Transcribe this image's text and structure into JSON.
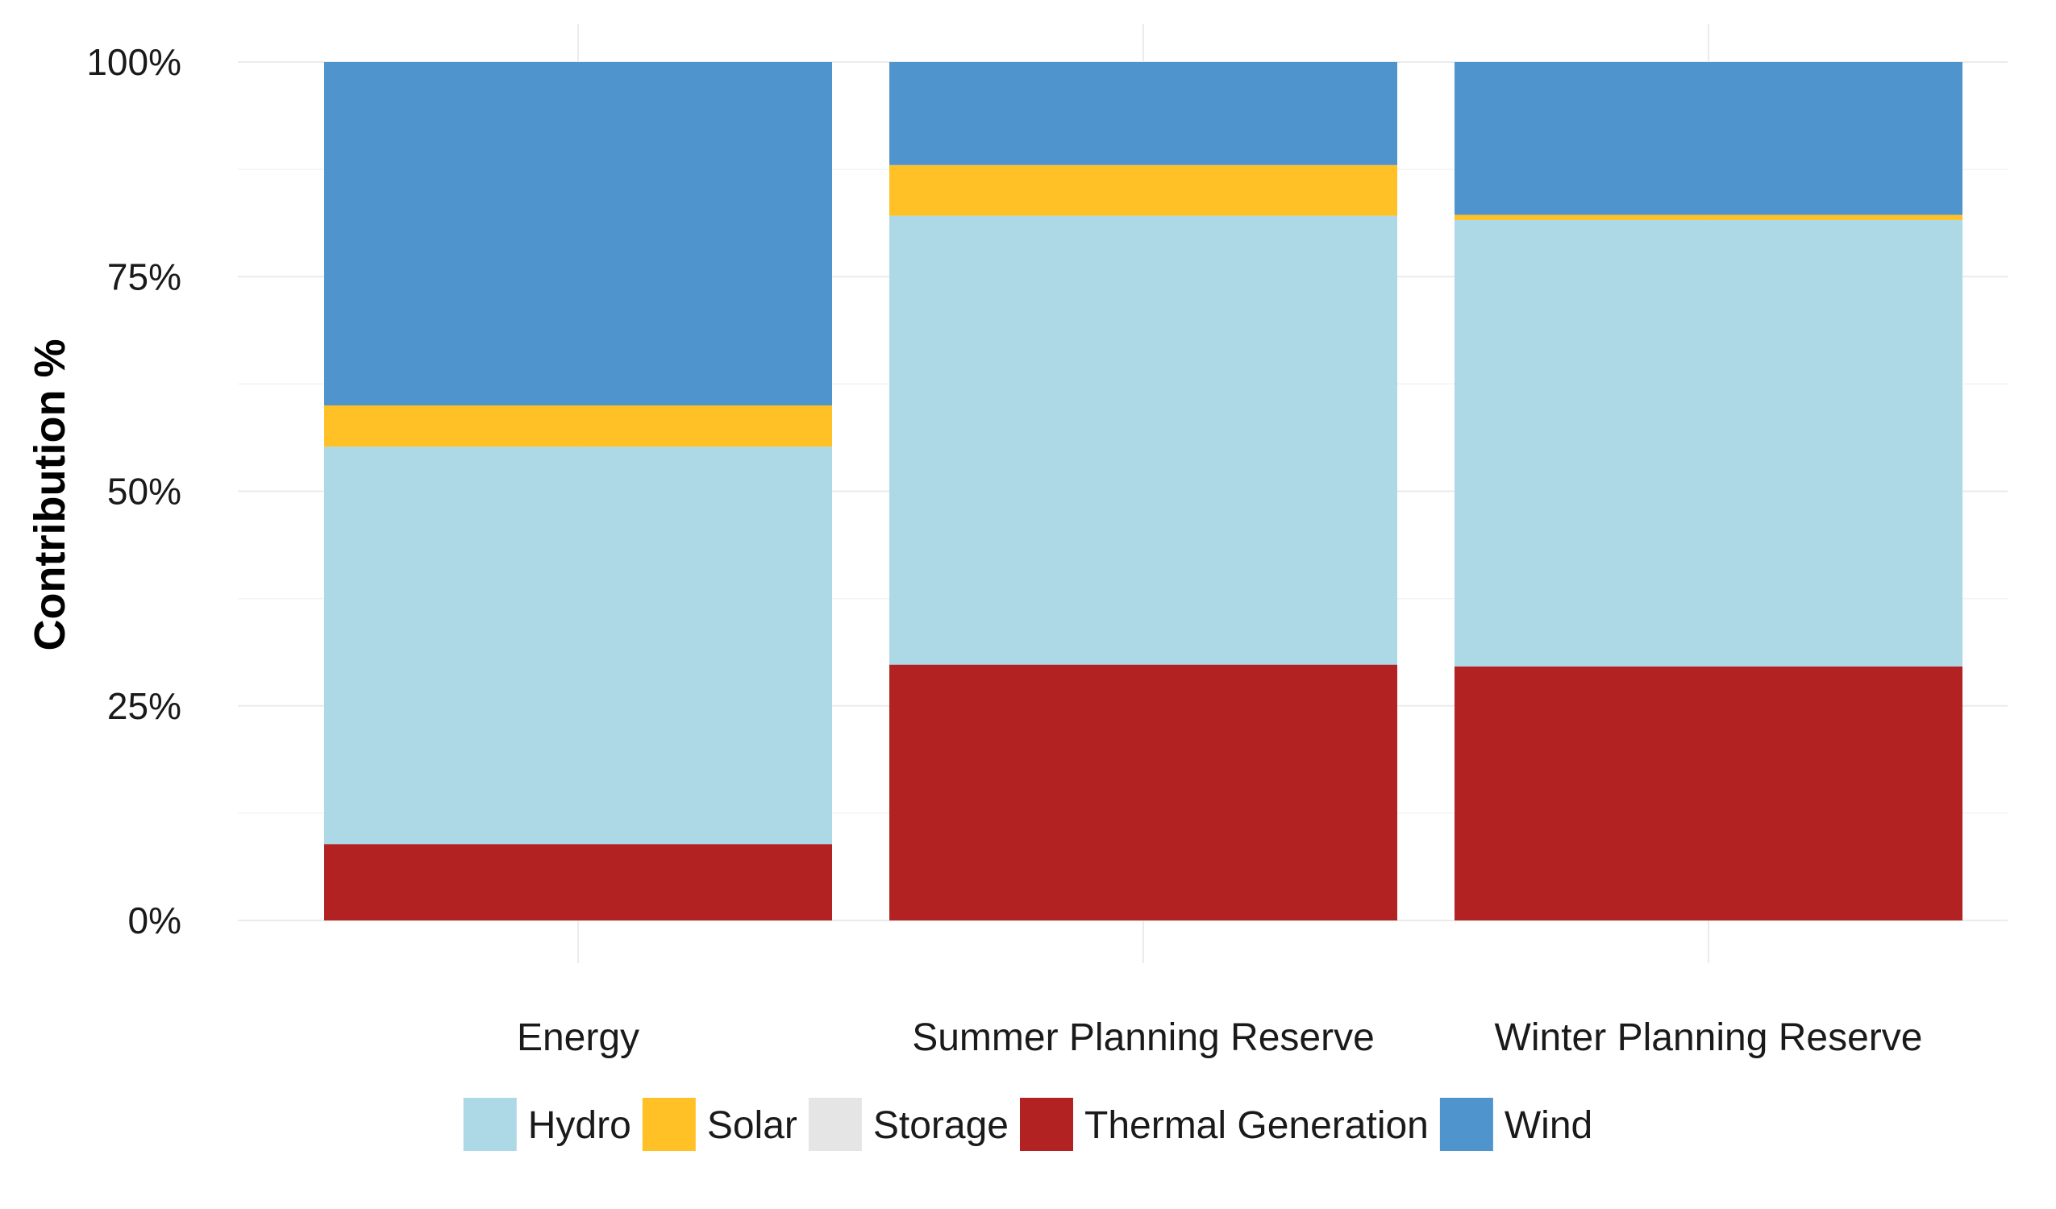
{
  "chart_data": {
    "type": "bar",
    "stacked": true,
    "categories": [
      "Energy",
      "Summer Planning Reserve",
      "Winter Planning Reserve"
    ],
    "ylabel": "Contribution %",
    "xlabel": "",
    "ylim": [
      0,
      100
    ],
    "yticks": [
      0,
      25,
      50,
      75,
      100
    ],
    "ytick_labels": [
      "0%",
      "25%",
      "50%",
      "75%",
      "100%"
    ],
    "grid": true,
    "legend_position": "bottom",
    "stack_order": [
      "Thermal Generation",
      "Hydro",
      "Storage",
      "Solar",
      "Wind"
    ],
    "series": [
      {
        "name": "Hydro",
        "color": "#add8e6",
        "values": [
          46.3,
          52.3,
          52.0
        ]
      },
      {
        "name": "Solar",
        "color": "#ffc125",
        "values": [
          4.8,
          5.9,
          0.6
        ]
      },
      {
        "name": "Storage",
        "color": "#e5e5e5",
        "values": [
          0,
          0,
          0
        ]
      },
      {
        "name": "Thermal Generation",
        "color": "#b22222",
        "values": [
          8.9,
          29.8,
          29.6
        ]
      },
      {
        "name": "Wind",
        "color": "#4f94cd",
        "values": [
          40.0,
          12.0,
          17.8
        ]
      }
    ]
  }
}
